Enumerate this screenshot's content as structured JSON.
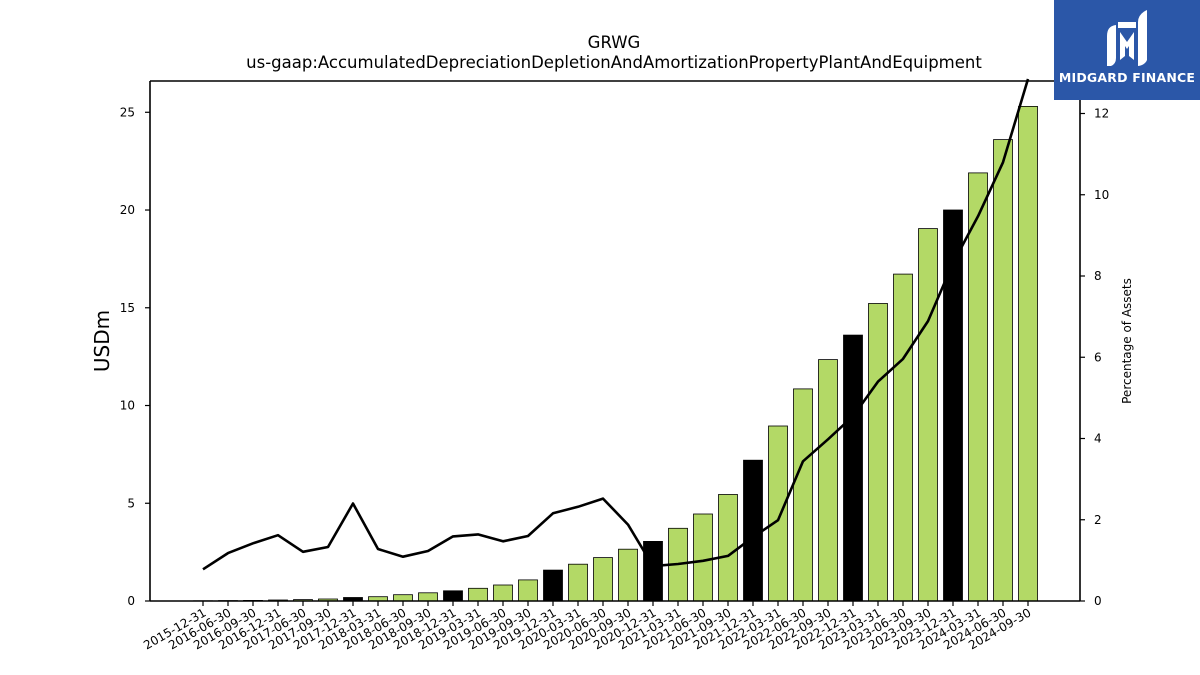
{
  "chart_data": {
    "type": "bar",
    "title": "GRWG",
    "subtitle": "us-gaap:AccumulatedDepreciationDepletionAndAmortizationPropertyPlantAndEquipment",
    "ylabel": "USDm",
    "y2label": "Percentage of Assets",
    "ylim": [
      0,
      26.6
    ],
    "y2lim": [
      0,
      12.8
    ],
    "yticks": [
      0,
      5,
      10,
      15,
      20,
      25
    ],
    "y2ticks": [
      0,
      2,
      4,
      6,
      8,
      10,
      12
    ],
    "grid": false,
    "colors": {
      "bar": "#b3d966",
      "bar_q4": "#000000",
      "line": "#000000"
    },
    "categories": [
      "2015-12-31",
      "2016-06-30",
      "2016-09-30",
      "2016-12-31",
      "2017-06-30",
      "2017-09-30",
      "2017-12-31",
      "2018-03-31",
      "2018-06-30",
      "2018-09-30",
      "2018-12-31",
      "2019-03-31",
      "2019-06-30",
      "2019-09-30",
      "2019-12-31",
      "2020-03-31",
      "2020-06-30",
      "2020-09-30",
      "2020-12-31",
      "2021-03-31",
      "2021-06-30",
      "2021-09-30",
      "2021-12-31",
      "2022-03-31",
      "2022-06-30",
      "2022-09-30",
      "2022-12-31",
      "2023-03-31",
      "2023-06-30",
      "2023-09-30",
      "2023-12-31",
      "2024-03-31",
      "2024-06-30",
      "2024-09-30"
    ],
    "series": [
      {
        "axis": "left",
        "kind": "bar",
        "values": [
          0.01,
          0.02,
          0.03,
          0.05,
          0.07,
          0.1,
          0.18,
          0.22,
          0.32,
          0.42,
          0.52,
          0.65,
          0.82,
          1.08,
          1.58,
          1.88,
          2.22,
          2.65,
          3.05,
          3.72,
          4.45,
          5.45,
          7.2,
          8.95,
          10.85,
          12.35,
          13.6,
          15.22,
          16.72,
          19.05,
          20.0,
          21.9,
          23.6,
          25.3
        ]
      },
      {
        "axis": "right",
        "kind": "line",
        "values": [
          0.78,
          1.18,
          1.42,
          1.62,
          1.21,
          1.33,
          2.4,
          1.28,
          1.09,
          1.23,
          1.59,
          1.64,
          1.47,
          1.6,
          2.16,
          2.32,
          2.52,
          1.88,
          0.86,
          0.91,
          0.99,
          1.11,
          1.57,
          1.99,
          3.44,
          3.98,
          4.55,
          5.4,
          5.96,
          6.89,
          8.32,
          9.47,
          10.8,
          12.85
        ]
      }
    ]
  },
  "logo": {
    "text": "MIDGARD FINANCE"
  }
}
